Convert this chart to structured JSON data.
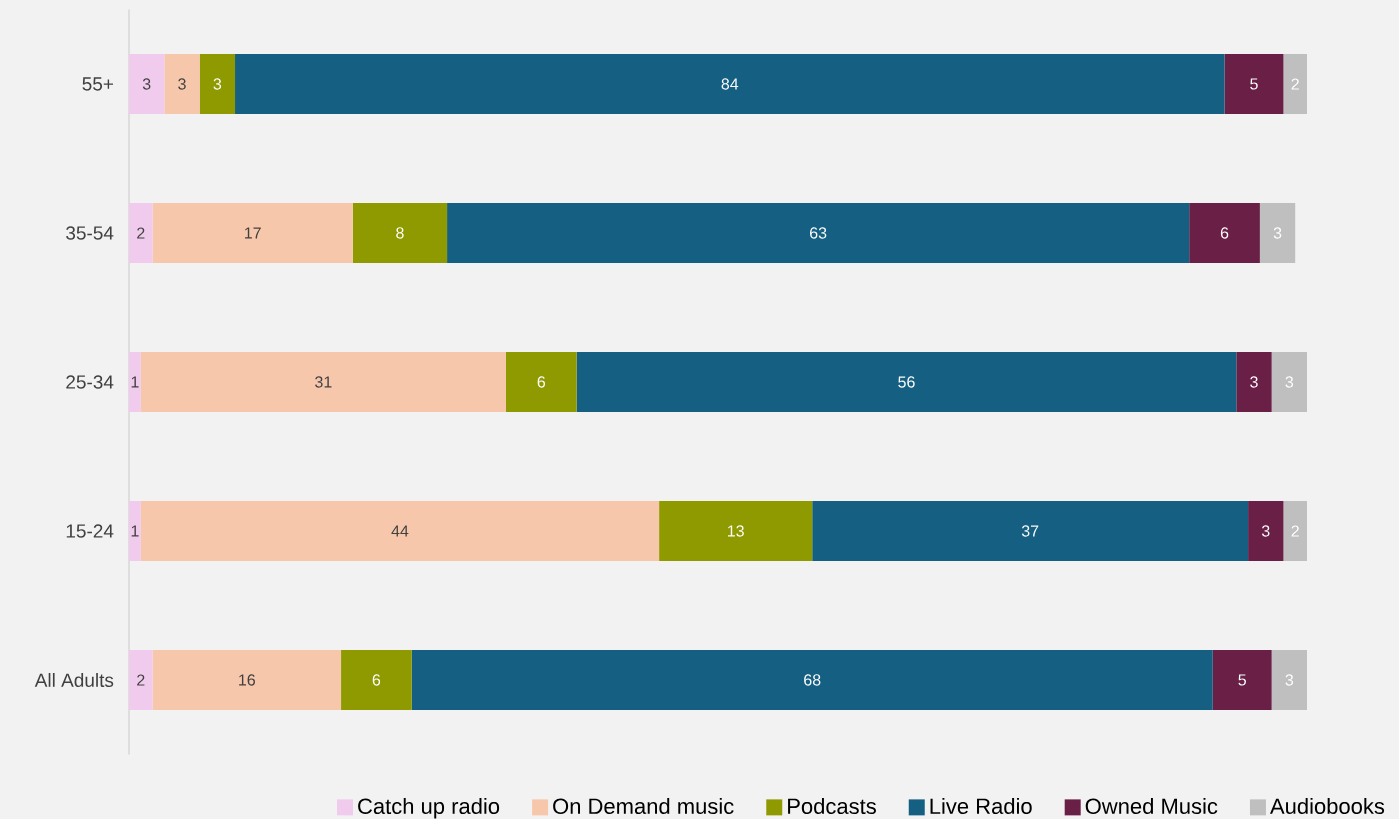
{
  "chart_data": {
    "type": "bar",
    "orientation": "horizontal",
    "stacked": true,
    "data_labels": true,
    "legend": "bottom",
    "categories": [
      "55+",
      "35-54",
      "25-34",
      "15-24",
      "All Adults"
    ],
    "series": [
      {
        "name": "Catch up radio",
        "color": "#f0cbed",
        "values": [
          3,
          2,
          1,
          1,
          2
        ]
      },
      {
        "name": "On Demand music",
        "color": "#f7c7ac",
        "values": [
          3,
          17,
          31,
          44,
          16
        ]
      },
      {
        "name": "Podcasts",
        "color": "#8f9a00",
        "values": [
          3,
          8,
          6,
          13,
          6
        ]
      },
      {
        "name": "Live Radio",
        "color": "#156082",
        "values": [
          84,
          63,
          56,
          37,
          68
        ]
      },
      {
        "name": "Owned Music",
        "color": "#6a1f46",
        "values": [
          5,
          6,
          3,
          3,
          5
        ]
      },
      {
        "name": "Audiobooks",
        "color": "#bfbfbf",
        "values": [
          2,
          3,
          3,
          2,
          3
        ]
      }
    ]
  }
}
